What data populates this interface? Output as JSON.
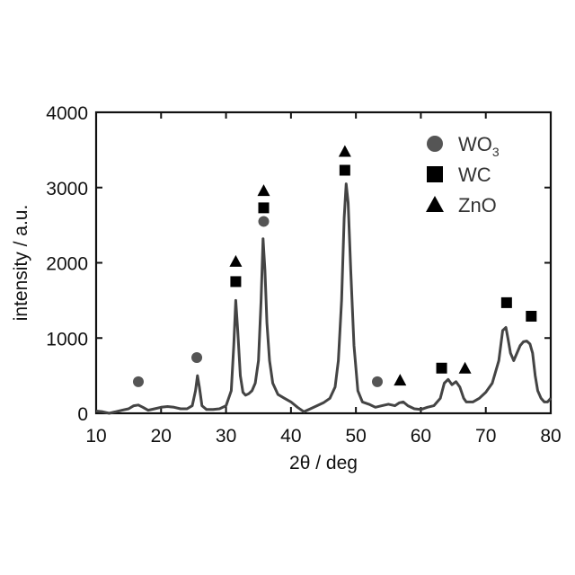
{
  "chart_data": {
    "type": "line",
    "title": "",
    "xlabel": "2θ / deg",
    "ylabel": "intensity / a.u.",
    "xlim": [
      10,
      80
    ],
    "ylim": [
      0,
      4000
    ],
    "xticks": [
      10,
      20,
      30,
      40,
      50,
      60,
      70,
      80
    ],
    "yticks": [
      0,
      1000,
      2000,
      3000,
      4000
    ],
    "grid": false,
    "legend_position": "top-right",
    "line_color": "#444444",
    "marker_color": "#000000",
    "circle_color": "#555555",
    "series": [
      {
        "x": [
          10,
          11,
          12,
          13,
          14,
          15,
          15.8,
          16.5,
          17.2,
          18,
          19,
          20,
          21,
          22,
          23,
          24,
          24.8,
          25.3,
          25.6,
          25.9,
          26.3,
          27,
          28,
          29,
          30,
          30.8,
          31.2,
          31.5,
          31.8,
          32.2,
          32.6,
          33,
          33.5,
          34,
          34.5,
          35,
          35.4,
          35.7,
          36,
          36.3,
          36.7,
          37.2,
          38,
          39,
          40,
          41,
          42,
          43,
          44,
          45,
          46,
          46.8,
          47.3,
          47.8,
          48.2,
          48.5,
          48.8,
          49.2,
          49.7,
          50.3,
          51,
          52,
          53,
          54,
          55,
          56,
          56.7,
          57.3,
          58,
          59,
          60,
          61,
          62,
          63,
          63.6,
          64.2,
          64.8,
          65.4,
          66,
          66.6,
          67,
          68,
          69,
          70,
          71,
          72,
          72.6,
          73.1,
          73.4,
          73.8,
          74.3,
          74.8,
          75.3,
          75.8,
          76.3,
          76.8,
          77.2,
          77.6,
          78,
          78.5,
          79,
          79.5,
          80
        ],
        "y": [
          30,
          20,
          0,
          20,
          40,
          60,
          100,
          110,
          80,
          40,
          60,
          80,
          90,
          80,
          60,
          60,
          100,
          300,
          500,
          350,
          100,
          50,
          50,
          60,
          100,
          300,
          900,
          1500,
          1100,
          500,
          280,
          240,
          260,
          300,
          400,
          700,
          1500,
          2320,
          1900,
          1200,
          700,
          400,
          250,
          200,
          150,
          80,
          20,
          60,
          100,
          140,
          200,
          350,
          700,
          1500,
          2600,
          3050,
          2800,
          1900,
          900,
          300,
          150,
          120,
          80,
          100,
          120,
          100,
          140,
          150,
          100,
          60,
          50,
          80,
          100,
          200,
          400,
          450,
          380,
          420,
          350,
          200,
          150,
          150,
          200,
          280,
          400,
          700,
          1100,
          1140,
          1000,
          800,
          700,
          800,
          900,
          950,
          960,
          920,
          800,
          500,
          300,
          200,
          150,
          150,
          200
        ]
      }
    ],
    "annotations": [
      {
        "marker": "circle",
        "x": 16.5,
        "y": 420
      },
      {
        "marker": "circle",
        "x": 25.5,
        "y": 740
      },
      {
        "marker": "triangle",
        "x": 31.5,
        "y": 2020
      },
      {
        "marker": "square",
        "x": 31.5,
        "y": 1750
      },
      {
        "marker": "triangle",
        "x": 35.8,
        "y": 2960
      },
      {
        "marker": "square",
        "x": 35.8,
        "y": 2730
      },
      {
        "marker": "circle",
        "x": 35.8,
        "y": 2550
      },
      {
        "marker": "triangle",
        "x": 48.3,
        "y": 3480
      },
      {
        "marker": "square",
        "x": 48.3,
        "y": 3230
      },
      {
        "marker": "circle",
        "x": 53.3,
        "y": 420
      },
      {
        "marker": "triangle",
        "x": 56.8,
        "y": 440
      },
      {
        "marker": "square",
        "x": 63.2,
        "y": 600
      },
      {
        "marker": "triangle",
        "x": 66.8,
        "y": 600
      },
      {
        "marker": "square",
        "x": 73.2,
        "y": 1470
      },
      {
        "marker": "square",
        "x": 77.0,
        "y": 1290
      }
    ],
    "legend": [
      {
        "marker": "circle",
        "label": "WO",
        "subscript": "3"
      },
      {
        "marker": "square",
        "label": "WC",
        "subscript": ""
      },
      {
        "marker": "triangle",
        "label": "ZnO",
        "subscript": ""
      }
    ]
  }
}
